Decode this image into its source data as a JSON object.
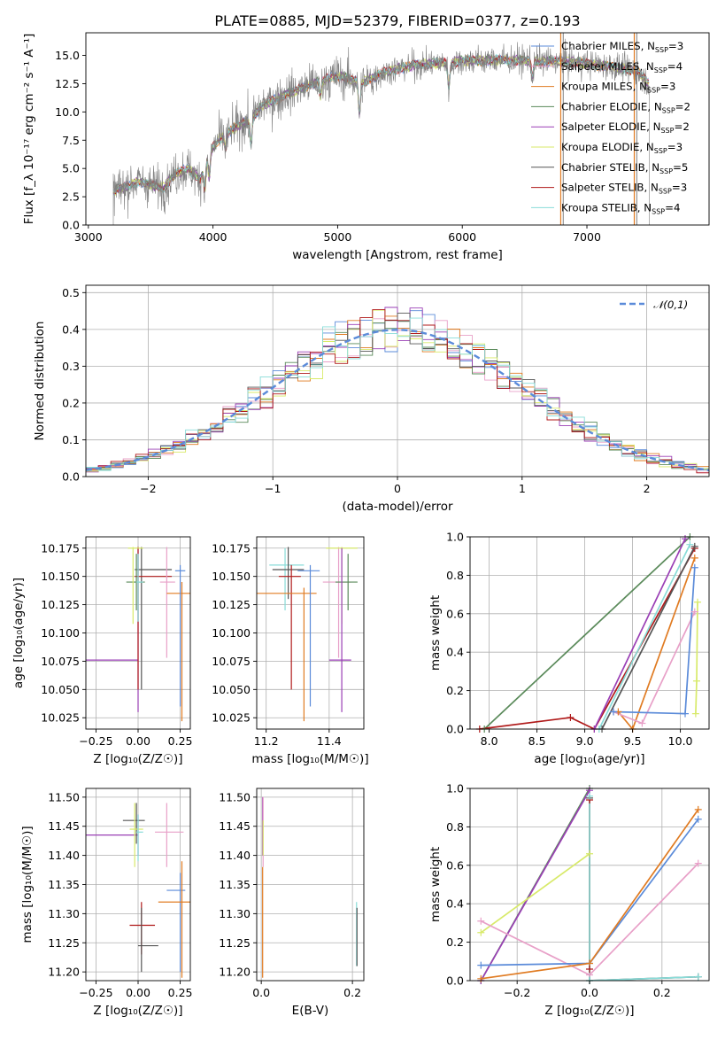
{
  "figure_title": "PLATE=0885, MJD=52379, FIBERID=0377, z=0.193",
  "colors": {
    "chabrier_miles": "#5b8bd9",
    "salpeter_miles": "#e8a0c8",
    "kroupa_miles": "#e07b22",
    "chabrier_elodie": "#5a8a5a",
    "salpeter_elodie": "#9a3fb5",
    "kroupa_elodie": "#d8ea6a",
    "chabrier_stelib": "#555555",
    "salpeter_stelib": "#b01a1a",
    "kroupa_stelib": "#88dcd8",
    "normal": "#5b8bd9",
    "grid": "#b0b0b0"
  },
  "chart_data": [
    {
      "id": "spectrum",
      "type": "line",
      "title": "PLATE=0885, MJD=52379, FIBERID=0377, z=0.193",
      "xlabel": "wavelength [Angstrom, rest frame]",
      "ylabel": "Flux [f_λ 10⁻¹⁷ erg cm⁻² s⁻¹ A⁻¹]",
      "xlim": [
        2980,
        7980
      ],
      "ylim": [
        0,
        17
      ],
      "xticks": [
        "3000",
        "4000",
        "5000",
        "6000",
        "7000"
      ],
      "yticks": [
        "0.0",
        "2.5",
        "5.0",
        "7.5",
        "10.0",
        "12.5",
        "15.0"
      ],
      "grid": false,
      "legend_position": "right",
      "legend": [
        {
          "label": "Chabrier MILES, N",
          "sub": "SSP",
          "suffix": "=3",
          "color": "chabrier_miles"
        },
        {
          "label": "Salpeter MILES, N",
          "sub": "SSP",
          "suffix": "=4",
          "color": "salpeter_miles"
        },
        {
          "label": "Kroupa MILES, N",
          "sub": "SSP",
          "suffix": "=3",
          "color": "kroupa_miles"
        },
        {
          "label": "Chabrier ELODIE, N",
          "sub": "SSP",
          "suffix": "=2",
          "color": "chabrier_elodie"
        },
        {
          "label": "Salpeter ELODIE, N",
          "sub": "SSP",
          "suffix": "=2",
          "color": "salpeter_elodie"
        },
        {
          "label": "Kroupa ELODIE, N",
          "sub": "SSP",
          "suffix": "=3",
          "color": "kroupa_elodie"
        },
        {
          "label": "Chabrier STELIB, N",
          "sub": "SSP",
          "suffix": "=5",
          "color": "chabrier_stelib"
        },
        {
          "label": "Salpeter STELIB, N",
          "sub": "SSP",
          "suffix": "=3",
          "color": "salpeter_stelib"
        },
        {
          "label": "Kroupa STELIB, N",
          "sub": "SSP",
          "suffix": "=4",
          "color": "kroupa_stelib"
        }
      ],
      "continuum": [
        [
          3200,
          3.0
        ],
        [
          3400,
          3.8
        ],
        [
          3600,
          3.3
        ],
        [
          3700,
          4.5
        ],
        [
          3800,
          5.0
        ],
        [
          3900,
          4.0
        ],
        [
          3950,
          6.2
        ],
        [
          4050,
          7.6
        ],
        [
          4200,
          8.8
        ],
        [
          4300,
          9.3
        ],
        [
          4400,
          10.6
        ],
        [
          4600,
          11.6
        ],
        [
          4800,
          12.5
        ],
        [
          5000,
          13.2
        ],
        [
          5200,
          12.6
        ],
        [
          5400,
          13.6
        ],
        [
          5600,
          14.1
        ],
        [
          5800,
          14.3
        ],
        [
          6000,
          14.5
        ],
        [
          6300,
          14.6
        ],
        [
          6600,
          14.5
        ],
        [
          6900,
          14.4
        ],
        [
          7200,
          14.0
        ],
        [
          7400,
          13.6
        ],
        [
          7500,
          12.5
        ]
      ],
      "data_range": [
        3200,
        7500
      ],
      "line_features": [
        {
          "x": 3934,
          "depth": 0.45
        },
        {
          "x": 3969,
          "depth": 0.35
        },
        {
          "x": 4101,
          "depth": 0.15
        },
        {
          "x": 4304,
          "depth": 0.22
        },
        {
          "x": 4861,
          "depth": 0.1
        },
        {
          "x": 5175,
          "depth": 0.22
        },
        {
          "x": 5892,
          "depth": 0.15
        },
        {
          "x": 6563,
          "depth": 0.1
        }
      ],
      "spike_regions": [
        [
          6790,
          6810
        ],
        [
          7380,
          7400
        ]
      ]
    },
    {
      "id": "residuals",
      "type": "histogram",
      "xlabel": "(data-model)/error",
      "ylabel": "Normed distribution",
      "xlim": [
        -2.5,
        2.5
      ],
      "ylim": [
        0,
        0.52
      ],
      "xticks": [
        "−2",
        "−1",
        "0",
        "1",
        "2"
      ],
      "yticks": [
        "0.0",
        "0.1",
        "0.2",
        "0.3",
        "0.4",
        "0.5"
      ],
      "grid": true,
      "legend_position": "upper right",
      "normal_label": "𝒩(0,1)",
      "bin_width": 0.1
    },
    {
      "id": "age_vs_Z",
      "type": "errorbar",
      "xlabel": "Z [log₁₀(Z/Z☉)]",
      "ylabel": "age  [log₁₀(age/yr)]",
      "xlim": [
        -0.31,
        0.31
      ],
      "ylim": [
        10.015,
        10.185
      ],
      "xticks": [
        "−0.25",
        "0.00",
        "0.25"
      ],
      "yticks": [
        "10.025",
        "10.050",
        "10.075",
        "10.100",
        "10.125",
        "10.150",
        "10.175"
      ],
      "grid": true,
      "points": [
        {
          "c": "salpeter_elodie",
          "x": 0,
          "y": 10.076,
          "xe": [
            -0.39,
            0
          ],
          "ye": [
            10.03,
            10.175
          ]
        },
        {
          "c": "chabrier_stelib",
          "x": 0.02,
          "y": 10.156,
          "xe": [
            -0.02,
            0.2
          ],
          "ye": [
            10.05,
            10.176
          ]
        },
        {
          "c": "salpeter_stelib",
          "x": 0.0,
          "y": 10.15,
          "xe": [
            -0.02,
            0.2
          ],
          "ye": [
            10.05,
            10.176
          ]
        },
        {
          "c": "chabrier_elodie",
          "x": -0.01,
          "y": 10.145,
          "xe": [
            -0.07,
            0.04
          ],
          "ye": [
            10.12,
            10.17
          ]
        },
        {
          "c": "kroupa_elodie",
          "x": -0.03,
          "y": 10.175,
          "xe": [
            -0.06,
            0.03
          ],
          "ye": [
            10.108,
            10.176
          ]
        },
        {
          "c": "kroupa_stelib",
          "x": 0.0,
          "y": 10.145,
          "xe": [
            -0.01,
            0.03
          ],
          "ye": [
            10.11,
            10.17
          ]
        },
        {
          "c": "salpeter_miles",
          "x": 0.17,
          "y": 10.145,
          "xe": [
            0.13,
            0.22
          ],
          "ye": [
            10.078,
            10.176
          ]
        },
        {
          "c": "kroupa_miles",
          "x": 0.26,
          "y": 10.135,
          "xe": [
            0.17,
            0.31
          ],
          "ye": [
            10.022,
            10.145
          ]
        },
        {
          "c": "chabrier_miles",
          "x": 0.25,
          "y": 10.155,
          "xe": [
            0.22,
            0.28
          ],
          "ye": [
            10.035,
            10.16
          ]
        }
      ]
    },
    {
      "id": "age_vs_mass",
      "type": "errorbar",
      "xlabel": "mass [log₁₀(M/M☉)]",
      "ylabel": "",
      "xlim": [
        11.17,
        11.51
      ],
      "ylim": [
        10.015,
        10.185
      ],
      "xticks": [
        "11.2",
        "11.4"
      ],
      "yticks": [
        "10.025",
        "10.050",
        "10.075",
        "10.100",
        "10.125",
        "10.150",
        "10.175"
      ],
      "grid": true,
      "points": [
        {
          "c": "kroupa_stelib",
          "x": 11.26,
          "y": 10.16,
          "xe": [
            11.21,
            11.32
          ],
          "ye": [
            10.12,
            10.175
          ]
        },
        {
          "c": "chabrier_stelib",
          "x": 11.27,
          "y": 10.156,
          "xe": [
            11.22,
            11.32
          ],
          "ye": [
            10.13,
            10.176
          ]
        },
        {
          "c": "salpeter_stelib",
          "x": 11.28,
          "y": 10.15,
          "xe": [
            11.24,
            11.31
          ],
          "ye": [
            10.05,
            10.16
          ]
        },
        {
          "c": "kroupa_miles",
          "x": 11.32,
          "y": 10.135,
          "xe": [
            11.17,
            11.36
          ],
          "ye": [
            10.022,
            10.14
          ]
        },
        {
          "c": "chabrier_miles",
          "x": 11.34,
          "y": 10.155,
          "xe": [
            11.3,
            11.37
          ],
          "ye": [
            10.035,
            10.16
          ]
        },
        {
          "c": "salpeter_miles",
          "x": 11.43,
          "y": 10.145,
          "xe": [
            11.38,
            11.47
          ],
          "ye": [
            10.078,
            10.176
          ]
        },
        {
          "c": "kroupa_elodie",
          "x": 11.44,
          "y": 10.175,
          "xe": [
            11.39,
            11.49
          ],
          "ye": [
            10.108,
            10.176
          ]
        },
        {
          "c": "chabrier_elodie",
          "x": 11.46,
          "y": 10.145,
          "xe": [
            11.42,
            11.49
          ],
          "ye": [
            10.12,
            10.17
          ]
        },
        {
          "c": "salpeter_elodie",
          "x": 11.44,
          "y": 10.076,
          "xe": [
            11.4,
            11.47
          ],
          "ye": [
            10.03,
            10.175
          ]
        }
      ]
    },
    {
      "id": "weight_vs_age",
      "type": "line",
      "xlabel": "age  [log₁₀(age/yr)]",
      "ylabel": "mass weight",
      "xlim": [
        7.8,
        10.3
      ],
      "ylim": [
        0,
        1
      ],
      "xticks": [
        "8.0",
        "8.5",
        "9.0",
        "9.5",
        "10.0"
      ],
      "yticks": [
        "0.0",
        "0.2",
        "0.4",
        "0.6",
        "0.8",
        "1.0"
      ],
      "grid": true,
      "series": [
        {
          "c": "chabrier_elodie",
          "x": [
            7.95,
            10.1
          ],
          "y": [
            0.0,
            1.0
          ]
        },
        {
          "c": "salpeter_stelib",
          "x": [
            7.9,
            8.85,
            9.1,
            10.15
          ],
          "y": [
            0.0,
            0.06,
            0.0,
            0.94
          ]
        },
        {
          "c": "salpeter_elodie",
          "x": [
            9.1,
            10.05
          ],
          "y": [
            0.0,
            0.99
          ]
        },
        {
          "c": "kroupa_stelib",
          "x": [
            9.15,
            10.1
          ],
          "y": [
            0.0,
            0.96
          ]
        },
        {
          "c": "chabrier_stelib",
          "x": [
            9.18,
            10.15
          ],
          "y": [
            0.0,
            0.95
          ]
        },
        {
          "c": "kroupa_miles",
          "x": [
            9.35,
            9.5,
            10.15
          ],
          "y": [
            0.09,
            0.0,
            0.89
          ]
        },
        {
          "c": "salpeter_miles",
          "x": [
            9.3,
            9.6,
            10.15
          ],
          "y": [
            0.09,
            0.03,
            0.61
          ]
        },
        {
          "c": "chabrier_miles",
          "x": [
            9.3,
            10.05,
            10.15
          ],
          "y": [
            0.09,
            0.08,
            0.84
          ]
        },
        {
          "c": "kroupa_elodie",
          "x": [
            10.16,
            10.17,
            10.18
          ],
          "y": [
            0.08,
            0.25,
            0.66
          ]
        }
      ]
    },
    {
      "id": "mass_vs_Z",
      "type": "errorbar",
      "xlabel": "Z [log₁₀(Z/Z☉)]",
      "ylabel": "mass [log₁₀(M/M☉)]",
      "xlim": [
        -0.31,
        0.31
      ],
      "ylim": [
        11.185,
        11.515
      ],
      "xticks": [
        "−0.25",
        "0.00",
        "0.25"
      ],
      "yticks": [
        "11.20",
        "11.25",
        "11.30",
        "11.35",
        "11.40",
        "11.45",
        "11.50"
      ],
      "grid": true,
      "points": [
        {
          "c": "salpeter_elodie",
          "x": 0.0,
          "y": 11.435,
          "xe": [
            -0.39,
            0
          ],
          "ye": [
            11.4,
            11.47
          ]
        },
        {
          "c": "chabrier_stelib",
          "x": -0.01,
          "y": 11.46,
          "xe": [
            -0.09,
            0.04
          ],
          "ye": [
            11.42,
            11.49
          ]
        },
        {
          "c": "kroupa_elodie",
          "x": -0.02,
          "y": 11.445,
          "xe": [
            -0.05,
            0.03
          ],
          "ye": [
            11.38,
            11.49
          ]
        },
        {
          "c": "kroupa_stelib",
          "x": 0.0,
          "y": 11.44,
          "xe": [
            -0.01,
            0.03
          ],
          "ye": [
            11.39,
            11.47
          ]
        },
        {
          "c": "salpeter_miles",
          "x": 0.17,
          "y": 11.44,
          "xe": [
            0.1,
            0.27
          ],
          "ye": [
            11.38,
            11.49
          ]
        },
        {
          "c": "chabrier_miles",
          "x": 0.25,
          "y": 11.34,
          "xe": [
            0.17,
            0.28
          ],
          "ye": [
            11.2,
            11.37
          ]
        },
        {
          "c": "kroupa_miles",
          "x": 0.26,
          "y": 11.32,
          "xe": [
            0.12,
            0.31
          ],
          "ye": [
            11.19,
            11.39
          ]
        },
        {
          "c": "salpeter_stelib",
          "x": 0.02,
          "y": 11.28,
          "xe": [
            -0.05,
            0.1
          ],
          "ye": [
            11.23,
            11.32
          ]
        },
        {
          "c": "chabrier_stelib",
          "x": 0.02,
          "y": 11.245,
          "xe": [
            0.0,
            0.12
          ],
          "ye": [
            11.2,
            11.31
          ]
        }
      ]
    },
    {
      "id": "mass_vs_ebv",
      "type": "errorbar",
      "xlabel": "E(B-V)",
      "ylabel": "",
      "xlim": [
        -0.01,
        0.225
      ],
      "ylim": [
        11.185,
        11.515
      ],
      "xticks": [
        "0.0",
        "0.2"
      ],
      "yticks": [
        "11.20",
        "11.25",
        "11.30",
        "11.35",
        "11.40",
        "11.45",
        "11.50"
      ],
      "grid": true,
      "points": [
        {
          "c": "salpeter_elodie",
          "x": 0.003,
          "y": 11.44,
          "xe": [
            0.003,
            0.003
          ],
          "ye": [
            11.4,
            11.5
          ]
        },
        {
          "c": "salpeter_miles",
          "x": 0.004,
          "y": 11.45,
          "xe": [
            0.004,
            0.004
          ],
          "ye": [
            11.38,
            11.5
          ]
        },
        {
          "c": "kroupa_miles",
          "x": 0.003,
          "y": 11.3,
          "xe": [
            0.003,
            0.003
          ],
          "ye": [
            11.19,
            11.38
          ]
        },
        {
          "c": "kroupa_elodie",
          "x": 0.004,
          "y": 11.44,
          "xe": [
            0.004,
            0.004
          ],
          "ye": [
            11.4,
            11.46
          ]
        },
        {
          "c": "kroupa_stelib",
          "x": 0.209,
          "y": 11.26,
          "xe": [
            0.209,
            0.209
          ],
          "ye": [
            11.21,
            11.32
          ]
        },
        {
          "c": "chabrier_stelib",
          "x": 0.21,
          "y": 11.25,
          "xe": [
            0.21,
            0.21
          ],
          "ye": [
            11.21,
            11.31
          ]
        }
      ]
    },
    {
      "id": "weight_vs_Z",
      "type": "line",
      "xlabel": "Z [log₁₀(Z/Z☉)]",
      "ylabel": "mass weight",
      "xlim": [
        -0.33,
        0.33
      ],
      "ylim": [
        0,
        1
      ],
      "xticks": [
        "−0.2",
        "0.0",
        "0.2"
      ],
      "yticks": [
        "0.0",
        "0.2",
        "0.4",
        "0.6",
        "0.8",
        "1.0"
      ],
      "grid": true,
      "series": [
        {
          "c": "chabrier_elodie",
          "x": [
            -0.3,
            0.0
          ],
          "y": [
            0.0,
            1.0
          ]
        },
        {
          "c": "salpeter_elodie",
          "x": [
            -0.3,
            0.0
          ],
          "y": [
            0.0,
            0.99
          ]
        },
        {
          "c": "kroupa_elodie",
          "x": [
            -0.3,
            0.0
          ],
          "y": [
            0.25,
            0.66
          ]
        },
        {
          "c": "salpeter_miles",
          "x": [
            -0.3,
            0.0,
            0.3
          ],
          "y": [
            0.31,
            0.03,
            0.61
          ]
        },
        {
          "c": "chabrier_miles",
          "x": [
            -0.3,
            0.0,
            0.3
          ],
          "y": [
            0.08,
            0.09,
            0.84
          ]
        },
        {
          "c": "kroupa_miles",
          "x": [
            -0.3,
            0.0,
            0.3
          ],
          "y": [
            0.01,
            0.09,
            0.89
          ]
        },
        {
          "c": "chabrier_stelib",
          "x": [
            0.0,
            0.0,
            0.3
          ],
          "y": [
            0.95,
            0.0,
            0.02
          ]
        },
        {
          "c": "salpeter_stelib",
          "x": [
            0.0,
            0.0
          ],
          "y": [
            0.94,
            0.06
          ]
        },
        {
          "c": "kroupa_stelib",
          "x": [
            0.0,
            0.0,
            0.3
          ],
          "y": [
            0.96,
            0.0,
            0.02
          ]
        }
      ]
    }
  ]
}
